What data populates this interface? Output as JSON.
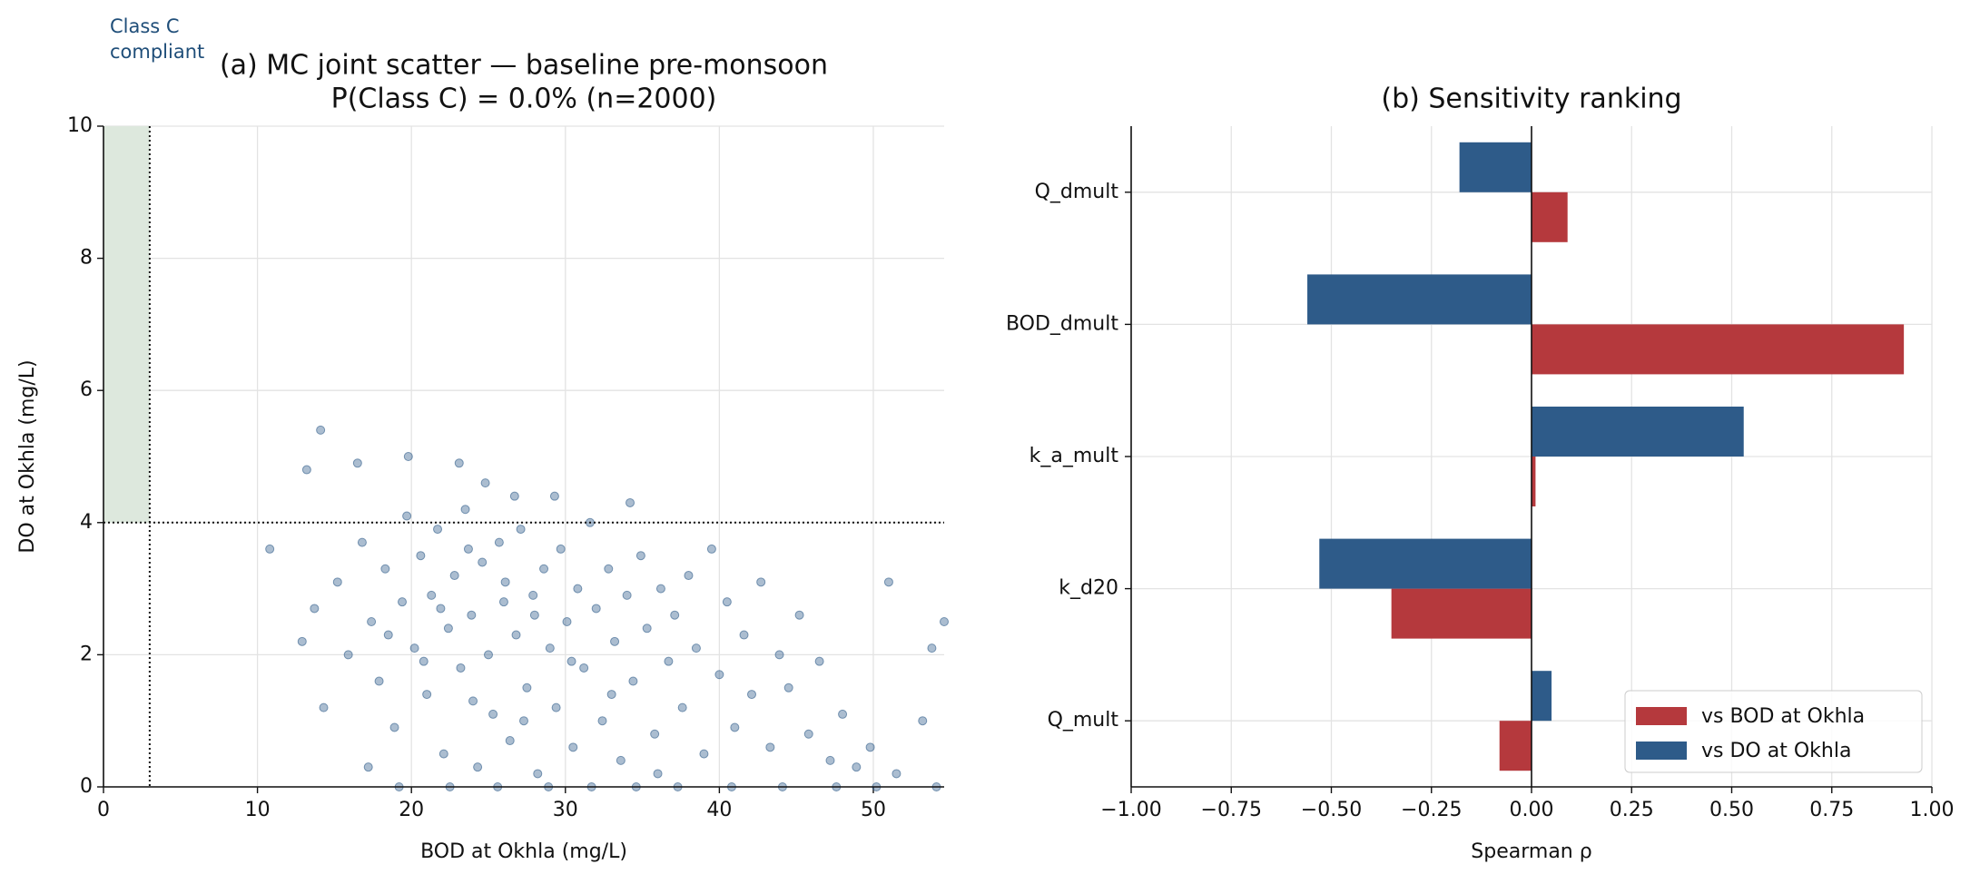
{
  "chart_data": [
    {
      "type": "scatter",
      "title": "(a) MC joint scatter — baseline pre-monsoon",
      "subtitle": "P(Class C) = 0.0% (n=2000)",
      "annotation_lines": [
        "Class C",
        "compliant"
      ],
      "x_label": "BOD at Okhla (mg/L)",
      "y_label": "DO at Okhla (mg/L)",
      "color": "#2e5b89",
      "region_color": "#dde8dd",
      "threshold_x": 3,
      "threshold_y": 4,
      "xlim": [
        0,
        54.6
      ],
      "ylim": [
        0,
        10
      ],
      "xticks": [
        0,
        10,
        20,
        30,
        40,
        50
      ],
      "yticks": [
        0,
        2,
        4,
        6,
        8,
        10
      ],
      "grid": true,
      "x": [
        14.1,
        13.2,
        16.5,
        19.8,
        23.1,
        24.8,
        26.7,
        29.3,
        34.2,
        10.8,
        12.9,
        13.7,
        14.3,
        15.2,
        15.9,
        16.8,
        17.4,
        17.9,
        18.3,
        18.9,
        19.4,
        19.7,
        20.2,
        20.6,
        21.0,
        21.3,
        21.7,
        22.1,
        22.4,
        22.8,
        23.2,
        23.5,
        23.9,
        24.3,
        24.6,
        25.0,
        25.3,
        25.7,
        26.0,
        26.4,
        26.8,
        27.1,
        27.5,
        27.9,
        28.2,
        28.6,
        29.0,
        29.4,
        29.7,
        30.1,
        30.5,
        30.8,
        31.2,
        31.6,
        32.0,
        32.4,
        32.8,
        33.2,
        33.6,
        34.0,
        34.4,
        34.9,
        35.3,
        35.8,
        36.2,
        36.7,
        37.1,
        37.6,
        38.0,
        38.5,
        39.0,
        39.5,
        40.0,
        40.5,
        41.0,
        41.6,
        42.1,
        42.7,
        43.3,
        43.9,
        44.5,
        45.2,
        45.8,
        46.5,
        47.2,
        48.0,
        48.9,
        49.8,
        51.0,
        51.5,
        53.2,
        53.8,
        54.6,
        19.2,
        22.5,
        25.6,
        28.9,
        31.7,
        34.6,
        37.3,
        40.8,
        44.1,
        47.6,
        50.2,
        54.1,
        17.2,
        24.0,
        26.1,
        28.0,
        30.4,
        21.9,
        23.7,
        27.3,
        33.0,
        36.0,
        20.8,
        18.5
      ],
      "y": [
        5.4,
        4.8,
        4.9,
        5.0,
        4.9,
        4.6,
        4.4,
        4.4,
        4.3,
        3.6,
        2.2,
        2.7,
        1.2,
        3.1,
        2.0,
        3.7,
        2.5,
        1.6,
        3.3,
        0.9,
        2.8,
        4.1,
        2.1,
        3.5,
        1.4,
        2.9,
        3.9,
        0.5,
        2.4,
        3.2,
        1.8,
        4.2,
        2.6,
        0.3,
        3.4,
        2.0,
        1.1,
        3.7,
        2.8,
        0.7,
        2.3,
        3.9,
        1.5,
        2.9,
        0.2,
        3.3,
        2.1,
        1.2,
        3.6,
        2.5,
        0.6,
        3.0,
        1.8,
        4.0,
        2.7,
        1.0,
        3.3,
        2.2,
        0.4,
        2.9,
        1.6,
        3.5,
        2.4,
        0.8,
        3.0,
        1.9,
        2.6,
        1.2,
        3.2,
        2.1,
        0.5,
        3.6,
        1.7,
        2.8,
        0.9,
        2.3,
        1.4,
        3.1,
        0.6,
        2.0,
        1.5,
        2.6,
        0.8,
        1.9,
        0.4,
        1.1,
        0.3,
        0.6,
        3.1,
        0.2,
        1.0,
        2.1,
        2.5,
        0,
        0,
        0,
        0,
        0,
        0,
        0,
        0,
        0,
        0,
        0,
        0,
        0.3,
        1.3,
        3.1,
        2.6,
        1.9,
        2.7,
        3.6,
        1.0,
        1.4,
        0.2,
        1.9,
        2.3
      ]
    },
    {
      "type": "barh",
      "title": "(b) Sensitivity ranking",
      "x_label": "Spearman ρ",
      "categories": [
        "Q_dmult",
        "BOD_dmult",
        "k_a_mult",
        "k_d20",
        "Q_mult"
      ],
      "series": [
        {
          "name": "vs BOD at Okhla",
          "color": "#b5393d",
          "values": [
            0.09,
            0.93,
            0.01,
            -0.35,
            -0.08
          ]
        },
        {
          "name": "vs DO at Okhla",
          "color": "#2e5b89",
          "values": [
            -0.18,
            -0.56,
            0.53,
            -0.53,
            0.05
          ]
        }
      ],
      "xlim": [
        -1,
        1
      ],
      "xticks": [
        {
          "value": -1,
          "label": "−1.00"
        },
        {
          "value": -0.75,
          "label": "−0.75"
        },
        {
          "value": -0.5,
          "label": "−0.50"
        },
        {
          "value": -0.25,
          "label": "−0.25"
        },
        {
          "value": 0,
          "label": "0.00"
        },
        {
          "value": 0.25,
          "label": "0.25"
        },
        {
          "value": 0.5,
          "label": "0.50"
        },
        {
          "value": 0.75,
          "label": "0.75"
        },
        {
          "value": 1,
          "label": "1.00"
        }
      ],
      "grid": true,
      "legend": "lower right"
    }
  ]
}
